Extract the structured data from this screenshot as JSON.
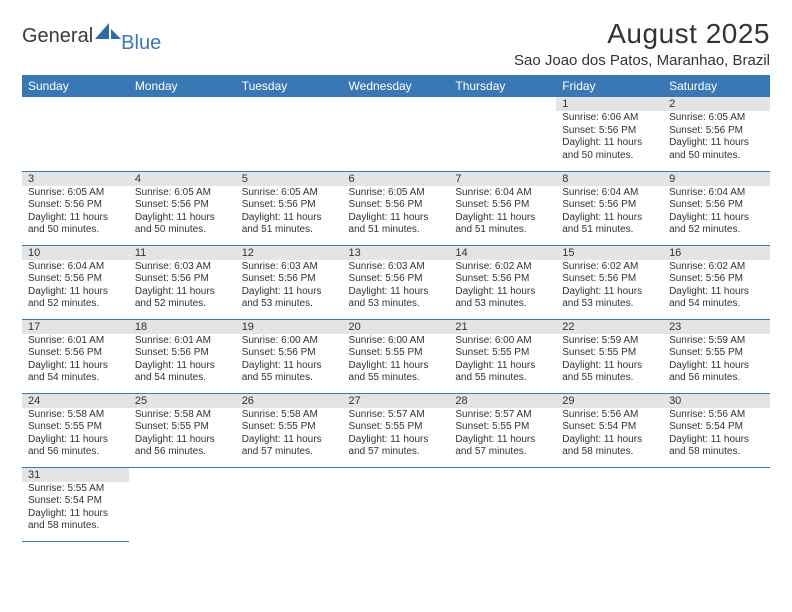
{
  "logo": {
    "text1": "General",
    "text2": "Blue"
  },
  "title": "August 2025",
  "location": "Sao Joao dos Patos, Maranhao, Brazil",
  "colors": {
    "header_bg": "#3a78b5",
    "daynum_bg": "#e4e4e4",
    "text": "#333333",
    "border": "#3a78b5"
  },
  "fonts": {
    "title_size": 28,
    "location_size": 15,
    "header_size": 12,
    "cell_size": 10
  },
  "weekdays": [
    "Sunday",
    "Monday",
    "Tuesday",
    "Wednesday",
    "Thursday",
    "Friday",
    "Saturday"
  ],
  "weeks": [
    [
      null,
      null,
      null,
      null,
      null,
      {
        "num": "1",
        "sunrise": "Sunrise: 6:06 AM",
        "sunset": "Sunset: 5:56 PM",
        "daylight": "Daylight: 11 hours and 50 minutes."
      },
      {
        "num": "2",
        "sunrise": "Sunrise: 6:05 AM",
        "sunset": "Sunset: 5:56 PM",
        "daylight": "Daylight: 11 hours and 50 minutes."
      }
    ],
    [
      {
        "num": "3",
        "sunrise": "Sunrise: 6:05 AM",
        "sunset": "Sunset: 5:56 PM",
        "daylight": "Daylight: 11 hours and 50 minutes."
      },
      {
        "num": "4",
        "sunrise": "Sunrise: 6:05 AM",
        "sunset": "Sunset: 5:56 PM",
        "daylight": "Daylight: 11 hours and 50 minutes."
      },
      {
        "num": "5",
        "sunrise": "Sunrise: 6:05 AM",
        "sunset": "Sunset: 5:56 PM",
        "daylight": "Daylight: 11 hours and 51 minutes."
      },
      {
        "num": "6",
        "sunrise": "Sunrise: 6:05 AM",
        "sunset": "Sunset: 5:56 PM",
        "daylight": "Daylight: 11 hours and 51 minutes."
      },
      {
        "num": "7",
        "sunrise": "Sunrise: 6:04 AM",
        "sunset": "Sunset: 5:56 PM",
        "daylight": "Daylight: 11 hours and 51 minutes."
      },
      {
        "num": "8",
        "sunrise": "Sunrise: 6:04 AM",
        "sunset": "Sunset: 5:56 PM",
        "daylight": "Daylight: 11 hours and 51 minutes."
      },
      {
        "num": "9",
        "sunrise": "Sunrise: 6:04 AM",
        "sunset": "Sunset: 5:56 PM",
        "daylight": "Daylight: 11 hours and 52 minutes."
      }
    ],
    [
      {
        "num": "10",
        "sunrise": "Sunrise: 6:04 AM",
        "sunset": "Sunset: 5:56 PM",
        "daylight": "Daylight: 11 hours and 52 minutes."
      },
      {
        "num": "11",
        "sunrise": "Sunrise: 6:03 AM",
        "sunset": "Sunset: 5:56 PM",
        "daylight": "Daylight: 11 hours and 52 minutes."
      },
      {
        "num": "12",
        "sunrise": "Sunrise: 6:03 AM",
        "sunset": "Sunset: 5:56 PM",
        "daylight": "Daylight: 11 hours and 53 minutes."
      },
      {
        "num": "13",
        "sunrise": "Sunrise: 6:03 AM",
        "sunset": "Sunset: 5:56 PM",
        "daylight": "Daylight: 11 hours and 53 minutes."
      },
      {
        "num": "14",
        "sunrise": "Sunrise: 6:02 AM",
        "sunset": "Sunset: 5:56 PM",
        "daylight": "Daylight: 11 hours and 53 minutes."
      },
      {
        "num": "15",
        "sunrise": "Sunrise: 6:02 AM",
        "sunset": "Sunset: 5:56 PM",
        "daylight": "Daylight: 11 hours and 53 minutes."
      },
      {
        "num": "16",
        "sunrise": "Sunrise: 6:02 AM",
        "sunset": "Sunset: 5:56 PM",
        "daylight": "Daylight: 11 hours and 54 minutes."
      }
    ],
    [
      {
        "num": "17",
        "sunrise": "Sunrise: 6:01 AM",
        "sunset": "Sunset: 5:56 PM",
        "daylight": "Daylight: 11 hours and 54 minutes."
      },
      {
        "num": "18",
        "sunrise": "Sunrise: 6:01 AM",
        "sunset": "Sunset: 5:56 PM",
        "daylight": "Daylight: 11 hours and 54 minutes."
      },
      {
        "num": "19",
        "sunrise": "Sunrise: 6:00 AM",
        "sunset": "Sunset: 5:56 PM",
        "daylight": "Daylight: 11 hours and 55 minutes."
      },
      {
        "num": "20",
        "sunrise": "Sunrise: 6:00 AM",
        "sunset": "Sunset: 5:55 PM",
        "daylight": "Daylight: 11 hours and 55 minutes."
      },
      {
        "num": "21",
        "sunrise": "Sunrise: 6:00 AM",
        "sunset": "Sunset: 5:55 PM",
        "daylight": "Daylight: 11 hours and 55 minutes."
      },
      {
        "num": "22",
        "sunrise": "Sunrise: 5:59 AM",
        "sunset": "Sunset: 5:55 PM",
        "daylight": "Daylight: 11 hours and 55 minutes."
      },
      {
        "num": "23",
        "sunrise": "Sunrise: 5:59 AM",
        "sunset": "Sunset: 5:55 PM",
        "daylight": "Daylight: 11 hours and 56 minutes."
      }
    ],
    [
      {
        "num": "24",
        "sunrise": "Sunrise: 5:58 AM",
        "sunset": "Sunset: 5:55 PM",
        "daylight": "Daylight: 11 hours and 56 minutes."
      },
      {
        "num": "25",
        "sunrise": "Sunrise: 5:58 AM",
        "sunset": "Sunset: 5:55 PM",
        "daylight": "Daylight: 11 hours and 56 minutes."
      },
      {
        "num": "26",
        "sunrise": "Sunrise: 5:58 AM",
        "sunset": "Sunset: 5:55 PM",
        "daylight": "Daylight: 11 hours and 57 minutes."
      },
      {
        "num": "27",
        "sunrise": "Sunrise: 5:57 AM",
        "sunset": "Sunset: 5:55 PM",
        "daylight": "Daylight: 11 hours and 57 minutes."
      },
      {
        "num": "28",
        "sunrise": "Sunrise: 5:57 AM",
        "sunset": "Sunset: 5:55 PM",
        "daylight": "Daylight: 11 hours and 57 minutes."
      },
      {
        "num": "29",
        "sunrise": "Sunrise: 5:56 AM",
        "sunset": "Sunset: 5:54 PM",
        "daylight": "Daylight: 11 hours and 58 minutes."
      },
      {
        "num": "30",
        "sunrise": "Sunrise: 5:56 AM",
        "sunset": "Sunset: 5:54 PM",
        "daylight": "Daylight: 11 hours and 58 minutes."
      }
    ],
    [
      {
        "num": "31",
        "sunrise": "Sunrise: 5:55 AM",
        "sunset": "Sunset: 5:54 PM",
        "daylight": "Daylight: 11 hours and 58 minutes."
      },
      null,
      null,
      null,
      null,
      null,
      null
    ]
  ]
}
